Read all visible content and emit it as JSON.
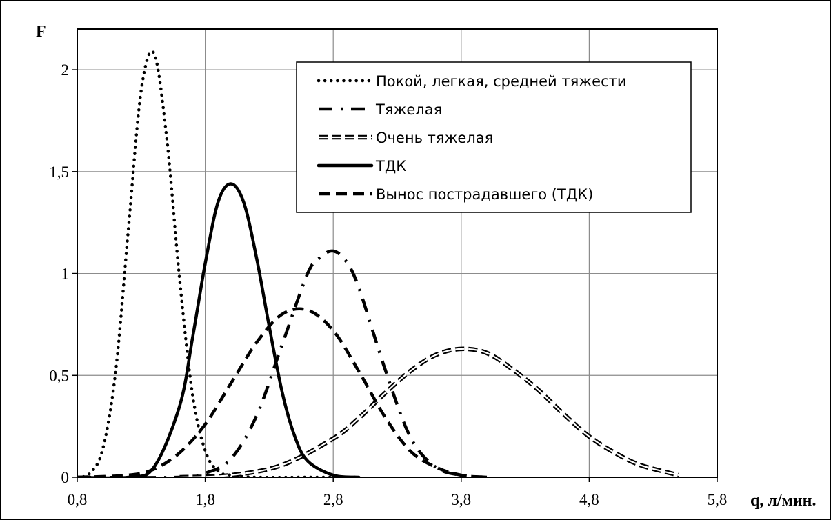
{
  "chart_data": {
    "type": "line",
    "title": "",
    "xlabel": "q, л/мин.",
    "ylabel": "F",
    "xlim": [
      0.8,
      5.8
    ],
    "ylim": [
      0,
      2.2
    ],
    "x_ticks": [
      "0,8",
      "1,8",
      "2,8",
      "3,8",
      "4,8",
      "5,8"
    ],
    "y_ticks": [
      "0",
      "0,5",
      "1",
      "1,5",
      "2"
    ],
    "grid": true,
    "legend_position": "top-right",
    "series": [
      {
        "name": "Покой, легкая, средней тяжести",
        "style": "dotted",
        "color": "#000000",
        "x": [
          0.8,
          0.9,
          1.0,
          1.1,
          1.2,
          1.3,
          1.4,
          1.5,
          1.6,
          1.7,
          1.8,
          1.9,
          2.0,
          2.2,
          2.6,
          3.0
        ],
        "y": [
          0.0,
          0.02,
          0.14,
          0.52,
          1.22,
          1.9,
          2.08,
          1.66,
          0.97,
          0.41,
          0.13,
          0.03,
          0.01,
          0.0,
          0.0,
          0.0
        ]
      },
      {
        "name": "Тяжелая",
        "style": "dash-dot",
        "color": "#000000",
        "x": [
          0.8,
          1.6,
          1.8,
          2.0,
          2.2,
          2.4,
          2.6,
          2.7,
          2.8,
          2.9,
          3.0,
          3.2,
          3.4,
          3.6,
          3.8,
          4.0
        ],
        "y": [
          0.0,
          0.0,
          0.02,
          0.09,
          0.3,
          0.65,
          1.0,
          1.08,
          1.11,
          1.06,
          0.93,
          0.54,
          0.2,
          0.05,
          0.01,
          0.0
        ]
      },
      {
        "name": "Очень тяжелая",
        "style": "double-dashed",
        "color": "#000000",
        "x": [
          1.6,
          2.0,
          2.4,
          2.8,
          3.0,
          3.2,
          3.4,
          3.6,
          3.8,
          4.0,
          4.2,
          4.4,
          4.6,
          4.8,
          5.0,
          5.2,
          5.5
        ],
        "y": [
          0.0,
          0.01,
          0.06,
          0.19,
          0.29,
          0.41,
          0.52,
          0.6,
          0.63,
          0.61,
          0.53,
          0.43,
          0.31,
          0.2,
          0.12,
          0.06,
          0.01
        ]
      },
      {
        "name": "ТДК",
        "style": "solid",
        "color": "#000000",
        "x": [
          0.8,
          1.2,
          1.4,
          1.6,
          1.7,
          1.8,
          1.9,
          2.0,
          2.1,
          2.2,
          2.3,
          2.4,
          2.5,
          2.6,
          2.8,
          3.0
        ],
        "y": [
          0.0,
          0.0,
          0.05,
          0.35,
          0.68,
          1.05,
          1.35,
          1.44,
          1.35,
          1.08,
          0.74,
          0.42,
          0.2,
          0.08,
          0.01,
          0.0
        ]
      },
      {
        "name": "Вынос пострадавшего (ТДК)",
        "style": "dashed",
        "color": "#000000",
        "x": [
          0.8,
          1.2,
          1.4,
          1.6,
          1.8,
          2.0,
          2.2,
          2.4,
          2.6,
          2.8,
          3.0,
          3.2,
          3.4,
          3.6,
          3.8,
          4.0
        ],
        "y": [
          0.0,
          0.01,
          0.04,
          0.12,
          0.26,
          0.46,
          0.66,
          0.8,
          0.82,
          0.72,
          0.52,
          0.3,
          0.13,
          0.05,
          0.01,
          0.0
        ]
      }
    ]
  }
}
